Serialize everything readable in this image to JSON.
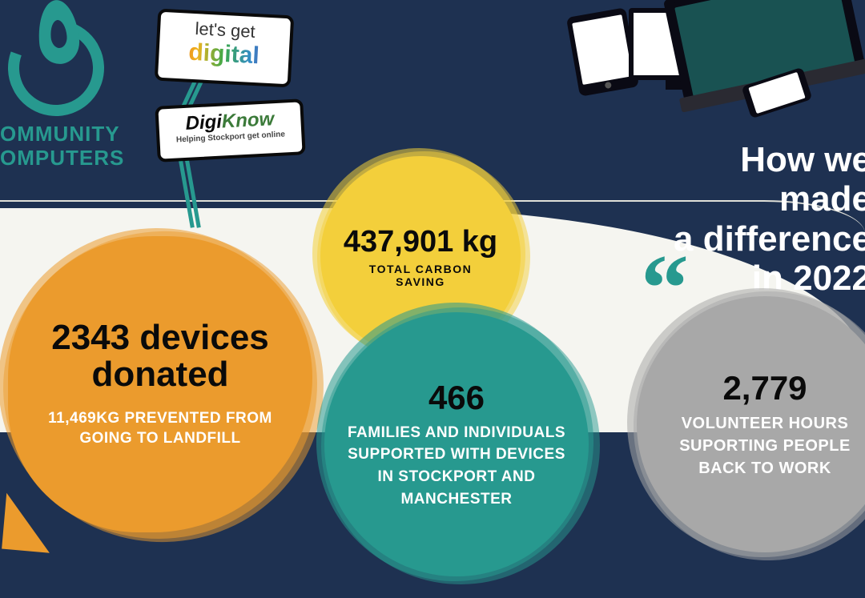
{
  "colors": {
    "background": "#1e3151",
    "teal": "#27998f",
    "orange": "#eb9b2d",
    "yellow": "#f3cf3b",
    "grey": "#a8a8a8",
    "white": "#ffffff",
    "black": "#0a0a0a"
  },
  "logo": {
    "line1": "OMMUNITY",
    "line2": "OMPUTERS"
  },
  "partners": {
    "card1": {
      "line1": "let's get",
      "line2": "digital"
    },
    "card2": {
      "line1a": "Digi",
      "line1b": "Know",
      "line2": "Helping Stockport get online"
    }
  },
  "headline": {
    "line1": "How we",
    "line2": "made",
    "line3": "a difference",
    "line4": "in 2022"
  },
  "bubbles": {
    "yellow": {
      "color": "#f3cf3b",
      "stat": "437,901 kg",
      "sub": "TOTAL CARBON SAVING"
    },
    "orange": {
      "color": "#eb9b2d",
      "stat": "2343 devices donated",
      "sub": "11,469KG PREVENTED FROM GOING TO LANDFILL"
    },
    "teal": {
      "color": "#27998f",
      "stat": "466",
      "sub": "FAMILIES AND INDIVIDUALS SUPPORTED WITH DEVICES IN STOCKPORT AND MANCHESTER"
    },
    "grey": {
      "color": "#a8a8a8",
      "stat": "2,779",
      "sub": "VOLUNTEER HOURS SUPORTING PEOPLE BACK TO WORK"
    }
  }
}
